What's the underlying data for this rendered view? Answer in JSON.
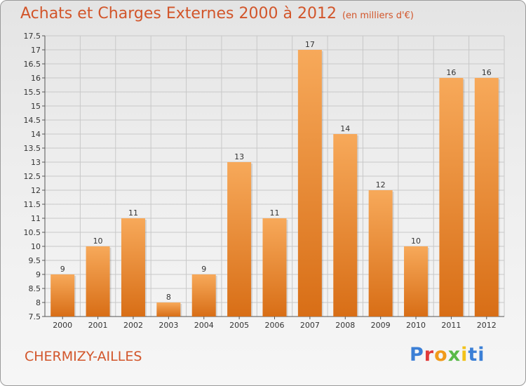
{
  "header": {
    "title": "Achats et Charges Externes 2000 à 2012",
    "unit": "(en milliers d'€)"
  },
  "footer": {
    "commune": "CHERMIZY-AILLES",
    "logo_letters": [
      "P",
      "r",
      "o",
      "x",
      "i",
      "ti"
    ]
  },
  "colors": {
    "title": "#d2552a",
    "bar_light": "#f7a95a",
    "bar_dark": "#d86e16",
    "grid": "#c8c8c8"
  },
  "chart_data": {
    "type": "bar",
    "title": "Achats et Charges Externes 2000 à 2012",
    "xlabel": "",
    "ylabel": "",
    "categories": [
      "2000",
      "2001",
      "2002",
      "2003",
      "2004",
      "2005",
      "2006",
      "2007",
      "2008",
      "2009",
      "2010",
      "2011",
      "2012"
    ],
    "values": [
      9,
      10,
      11,
      8,
      9,
      13,
      11,
      17,
      14,
      12,
      10,
      16,
      16
    ],
    "ylim": [
      7.5,
      17.5
    ],
    "yticks": [
      "7.5",
      "8",
      "8.5",
      "9",
      "9.5",
      "10",
      "10.5",
      "11",
      "11.5",
      "12",
      "12.5",
      "13",
      "13.5",
      "14",
      "14.5",
      "15",
      "15.5",
      "16",
      "16.5",
      "17",
      "17.5"
    ],
    "grid": true,
    "legend": "none"
  }
}
